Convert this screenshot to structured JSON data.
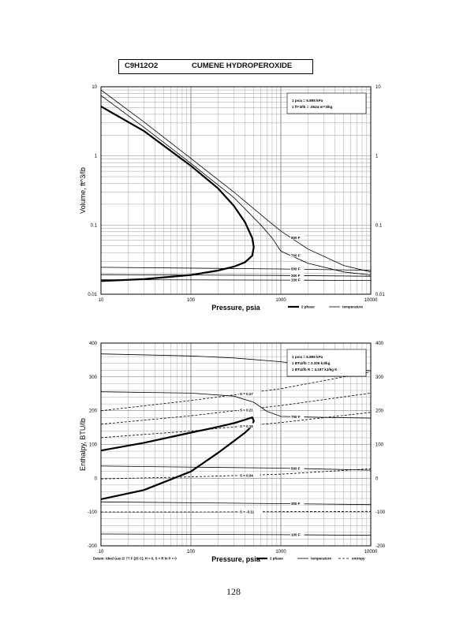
{
  "header": {
    "formula": "C9H12O2",
    "name": "CUMENE HYDROPEROXIDE"
  },
  "page_number": "128",
  "chart_data": [
    {
      "type": "line",
      "xlabel": "Pressure,  psia",
      "ylabel": "Volume, ft^3/lb",
      "xscale": "log",
      "yscale": "log",
      "xlim": [
        10,
        10000
      ],
      "ylim": [
        0.01,
        10
      ],
      "grid": true,
      "xticks": [
        "10",
        "100",
        "1000",
        "10000"
      ],
      "yticks": [
        "0.01",
        "0.1",
        "1",
        "10"
      ],
      "note": [
        "1 psia  =  6.895 kPa",
        "1 ft^3/lb  =  .0624 m^3/kg"
      ],
      "legend": [
        "2 phase",
        "temperature"
      ],
      "series": [
        {
          "style": "bold",
          "x": [
            10,
            30,
            100,
            200,
            300,
            400,
            480,
            500,
            480,
            400,
            300,
            200,
            100,
            30,
            10
          ],
          "y": [
            5.2,
            2.3,
            0.72,
            0.34,
            0.19,
            0.11,
            0.065,
            0.048,
            0.036,
            0.029,
            0.025,
            0.022,
            0.019,
            0.0165,
            0.0155
          ]
        },
        {
          "name": "900 F",
          "x": [
            10,
            30,
            100,
            300,
            700,
            1000,
            2000,
            5000,
            10000
          ],
          "y": [
            9.0,
            3.1,
            0.92,
            0.3,
            0.12,
            0.082,
            0.045,
            0.026,
            0.021
          ]
        },
        {
          "name": "700 F",
          "x": [
            10,
            30,
            100,
            300,
            600,
            800,
            1000,
            2000,
            5000,
            10000
          ],
          "y": [
            7.5,
            2.6,
            0.78,
            0.25,
            0.1,
            0.065,
            0.042,
            0.028,
            0.021,
            0.019
          ]
        },
        {
          "name": "500 F",
          "x": [
            10,
            1000,
            10000
          ],
          "y": [
            0.0245,
            0.0232,
            0.0222
          ]
        },
        {
          "name": "300 F",
          "x": [
            10,
            1000,
            10000
          ],
          "y": [
            0.0192,
            0.0187,
            0.0182
          ]
        },
        {
          "name": "100 F",
          "x": [
            10,
            1000,
            10000
          ],
          "y": [
            0.0162,
            0.016,
            0.0158
          ]
        }
      ]
    },
    {
      "type": "line",
      "xlabel": "Pressure,  psia",
      "ylabel": "Enthalpy, BTU/lb",
      "xscale": "log",
      "xlim": [
        10,
        10000
      ],
      "ylim": [
        -200,
        400
      ],
      "grid": true,
      "xticks": [
        "10",
        "100",
        "1000",
        "10000"
      ],
      "yticks": [
        "-200",
        "-100",
        "0",
        "100",
        "200",
        "300",
        "400"
      ],
      "note": [
        "1 psia  =  6.895 kPa",
        "1 BTU/lb  =  2.326 kJ/kg",
        "1 BTU/lb R  =  4.187 kJ/kg K"
      ],
      "datum": "Datum: Ideal Gas @ 77 F (25 C),  H = 0,  S = R ln P = 0",
      "legend": [
        "2 phase",
        "temperature",
        "entropy"
      ],
      "series": [
        {
          "style": "bold",
          "x": [
            10,
            30,
            100,
            200,
            300,
            400,
            480,
            500,
            480,
            400,
            300,
            200,
            100,
            30,
            10
          ],
          "y": [
            82,
            105,
            135,
            152,
            163,
            173,
            180,
            170,
            155,
            135,
            110,
            75,
            20,
            -35,
            -62
          ]
        },
        {
          "name": "900 F",
          "x": [
            10,
            100,
            300,
            1000,
            3000,
            10000
          ],
          "y": [
            368,
            362,
            356,
            345,
            330,
            318
          ]
        },
        {
          "name": "700 F",
          "x": [
            10,
            100,
            300,
            500,
            700,
            1000,
            3000,
            10000
          ],
          "y": [
            256,
            252,
            243,
            225,
            198,
            183,
            180,
            178
          ]
        },
        {
          "name": "500 F",
          "x": [
            10,
            1000,
            10000
          ],
          "y": [
            36,
            30,
            24
          ]
        },
        {
          "name": "300 F",
          "x": [
            10,
            1000,
            10000
          ],
          "y": [
            -70,
            -75,
            -78
          ]
        },
        {
          "name": "100 F",
          "x": [
            10,
            1000,
            10000
          ],
          "y": [
            -165,
            -167,
            -169
          ]
        },
        {
          "name": "S = 0.27",
          "style": "dashed",
          "x": [
            10,
            100,
            1000,
            10000
          ],
          "y": [
            200,
            230,
            265,
            315
          ]
        },
        {
          "name": "S = 0.21",
          "style": "dashed",
          "x": [
            10,
            100,
            1000,
            10000
          ],
          "y": [
            160,
            185,
            215,
            252
          ]
        },
        {
          "name": "S = 0.16",
          "style": "dashed",
          "x": [
            10,
            100,
            1000,
            10000
          ],
          "y": [
            120,
            140,
            165,
            195
          ]
        },
        {
          "name": "S = 0.04",
          "style": "dashed",
          "x": [
            10,
            100,
            1000,
            10000
          ],
          "y": [
            -2,
            4,
            12,
            28
          ]
        },
        {
          "name": "S = -0.11",
          "style": "dashed",
          "x": [
            10,
            100,
            1000,
            10000
          ],
          "y": [
            -100,
            -100,
            -99,
            -98
          ]
        }
      ]
    }
  ]
}
